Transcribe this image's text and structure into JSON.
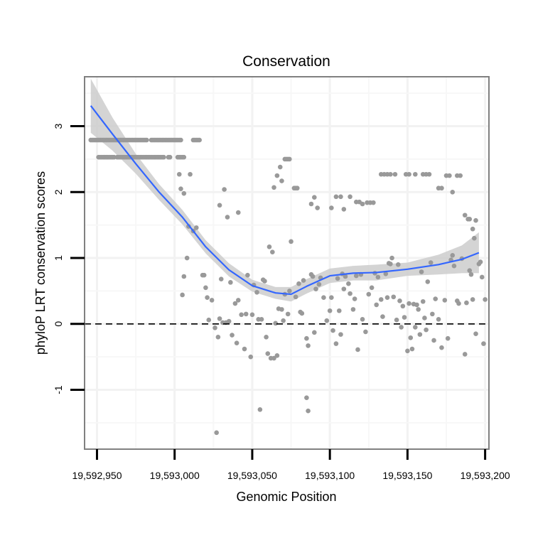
{
  "chart_data": {
    "type": "scatter",
    "title": "Conservation",
    "xlabel": "Genomic Position",
    "ylabel": "phyloP LRT conservation scores",
    "xlim": [
      19592942,
      19593202
    ],
    "ylim": [
      -1.9,
      3.75
    ],
    "x_ticks": [
      19592950,
      19593000,
      19593050,
      19593100,
      19593150,
      19593200
    ],
    "x_tick_labels": [
      "19,592,950",
      "19,593,000",
      "19,593,050",
      "19,593,100",
      "19,593,150",
      "19,593,200"
    ],
    "y_ticks": [
      -1,
      0,
      1,
      2,
      3
    ],
    "y_tick_labels": [
      "-1",
      "0",
      "1",
      "2",
      "3"
    ],
    "grid": true,
    "reference_line": {
      "y": 0,
      "style": "dashed"
    },
    "point_color": "#999999",
    "smooth_color": "#3366ff",
    "band_color": "#cccccc",
    "points": [
      [
        19592946,
        2.79
      ],
      [
        19592947,
        2.79
      ],
      [
        19592948,
        2.79
      ],
      [
        19592949,
        2.79
      ],
      [
        19592950,
        2.79
      ],
      [
        19592951,
        2.79
      ],
      [
        19592952,
        2.79
      ],
      [
        19592953,
        2.79
      ],
      [
        19592954,
        2.79
      ],
      [
        19592955,
        2.79
      ],
      [
        19592956,
        2.79
      ],
      [
        19592957,
        2.79
      ],
      [
        19592958,
        2.79
      ],
      [
        19592959,
        2.79
      ],
      [
        19592960,
        2.79
      ],
      [
        19592961,
        2.79
      ],
      [
        19592962,
        2.79
      ],
      [
        19592963,
        2.79
      ],
      [
        19592964,
        2.79
      ],
      [
        19592965,
        2.79
      ],
      [
        19592966,
        2.79
      ],
      [
        19592967,
        2.79
      ],
      [
        19592968,
        2.79
      ],
      [
        19592969,
        2.79
      ],
      [
        19592970,
        2.79
      ],
      [
        19592971,
        2.79
      ],
      [
        19592972,
        2.79
      ],
      [
        19592973,
        2.79
      ],
      [
        19592974,
        2.79
      ],
      [
        19592975,
        2.79
      ],
      [
        19592976,
        2.79
      ],
      [
        19592977,
        2.79
      ],
      [
        19592978,
        2.79
      ],
      [
        19592979,
        2.79
      ],
      [
        19592980,
        2.79
      ],
      [
        19592981,
        2.79
      ],
      [
        19592982,
        2.79
      ],
      [
        19592985,
        2.79
      ],
      [
        19592986,
        2.79
      ],
      [
        19592987,
        2.79
      ],
      [
        19592988,
        2.79
      ],
      [
        19592989,
        2.79
      ],
      [
        19592990,
        2.79
      ],
      [
        19592991,
        2.79
      ],
      [
        19592992,
        2.79
      ],
      [
        19592993,
        2.79
      ],
      [
        19592994,
        2.79
      ],
      [
        19592995,
        2.79
      ],
      [
        19592996,
        2.79
      ],
      [
        19592997,
        2.79
      ],
      [
        19592998,
        2.79
      ],
      [
        19592999,
        2.79
      ],
      [
        19593000,
        2.79
      ],
      [
        19593001,
        2.79
      ],
      [
        19593002,
        2.79
      ],
      [
        19593003,
        2.79
      ],
      [
        19593004,
        2.79
      ],
      [
        19593012,
        2.79
      ],
      [
        19593013,
        2.79
      ],
      [
        19593014,
        2.79
      ],
      [
        19593015,
        2.79
      ],
      [
        19593016,
        2.79
      ],
      [
        19592951,
        2.53
      ],
      [
        19592952,
        2.53
      ],
      [
        19592953,
        2.53
      ],
      [
        19592954,
        2.53
      ],
      [
        19592955,
        2.53
      ],
      [
        19592956,
        2.53
      ],
      [
        19592957,
        2.53
      ],
      [
        19592958,
        2.53
      ],
      [
        19592959,
        2.53
      ],
      [
        19592960,
        2.53
      ],
      [
        19592961,
        2.53
      ],
      [
        19592963,
        2.53
      ],
      [
        19592964,
        2.53
      ],
      [
        19592965,
        2.53
      ],
      [
        19592966,
        2.53
      ],
      [
        19592967,
        2.53
      ],
      [
        19592968,
        2.53
      ],
      [
        19592969,
        2.53
      ],
      [
        19592970,
        2.53
      ],
      [
        19592971,
        2.53
      ],
      [
        19592972,
        2.53
      ],
      [
        19592973,
        2.53
      ],
      [
        19592974,
        2.53
      ],
      [
        19592975,
        2.53
      ],
      [
        19592976,
        2.53
      ],
      [
        19592977,
        2.53
      ],
      [
        19592978,
        2.53
      ],
      [
        19592979,
        2.53
      ],
      [
        19592980,
        2.53
      ],
      [
        19592981,
        2.53
      ],
      [
        19592982,
        2.53
      ],
      [
        19592983,
        2.53
      ],
      [
        19592984,
        2.53
      ],
      [
        19592985,
        2.53
      ],
      [
        19592986,
        2.53
      ],
      [
        19592987,
        2.53
      ],
      [
        19592988,
        2.53
      ],
      [
        19592989,
        2.53
      ],
      [
        19592990,
        2.53
      ],
      [
        19592991,
        2.53
      ],
      [
        19592992,
        2.53
      ],
      [
        19592993,
        2.53
      ],
      [
        19592996,
        2.53
      ],
      [
        19592997,
        2.53
      ],
      [
        19593002,
        2.53
      ],
      [
        19593003,
        2.53
      ],
      [
        19593004,
        2.53
      ],
      [
        19593005,
        2.53
      ],
      [
        19593006,
        2.53
      ],
      [
        19593010,
        2.27
      ],
      [
        19593003,
        2.27
      ],
      [
        19593004,
        2.05
      ],
      [
        19593006,
        1.98
      ],
      [
        19593029,
        1.8
      ],
      [
        19593034,
        1.62
      ],
      [
        19593041,
        1.69
      ],
      [
        19593032,
        2.04
      ],
      [
        19593064,
        2.07
      ],
      [
        19593066,
        2.25
      ],
      [
        19593068,
        2.38
      ],
      [
        19593069,
        2.17
      ],
      [
        19593071,
        2.5
      ],
      [
        19593072,
        2.5
      ],
      [
        19593073,
        2.5
      ],
      [
        19593074,
        2.5
      ],
      [
        19593077,
        2.06
      ],
      [
        19593078,
        2.06
      ],
      [
        19593079,
        2.06
      ],
      [
        19593088,
        1.82
      ],
      [
        19593090,
        1.92
      ],
      [
        19593092,
        1.76
      ],
      [
        19593101,
        1.76
      ],
      [
        19593104,
        1.93
      ],
      [
        19593107,
        1.93
      ],
      [
        19593109,
        1.74
      ],
      [
        19593113,
        1.93
      ],
      [
        19593117,
        1.85
      ],
      [
        19593119,
        1.85
      ],
      [
        19593121,
        1.82
      ],
      [
        19593124,
        1.84
      ],
      [
        19593126,
        1.84
      ],
      [
        19593128,
        1.84
      ],
      [
        19593133,
        2.27
      ],
      [
        19593135,
        2.27
      ],
      [
        19593137,
        2.27
      ],
      [
        19593139,
        2.27
      ],
      [
        19593142,
        2.27
      ],
      [
        19593149,
        2.27
      ],
      [
        19593151,
        2.27
      ],
      [
        19593155,
        2.27
      ],
      [
        19593160,
        2.27
      ],
      [
        19593162,
        2.27
      ],
      [
        19593164,
        2.27
      ],
      [
        19593170,
        2.06
      ],
      [
        19593172,
        2.06
      ],
      [
        19593175,
        2.25
      ],
      [
        19593177,
        2.25
      ],
      [
        19593179,
        2.0
      ],
      [
        19593182,
        2.25
      ],
      [
        19593184,
        2.25
      ],
      [
        19593187,
        1.65
      ],
      [
        19593189,
        1.59
      ],
      [
        19593190,
        1.59
      ],
      [
        19593192,
        1.44
      ],
      [
        19593193,
        1.3
      ],
      [
        19593194,
        1.57
      ],
      [
        19593008,
        1.0
      ],
      [
        19593009,
        1.48
      ],
      [
        19593012,
        1.41
      ],
      [
        19593014,
        1.46
      ],
      [
        19593006,
        0.72
      ],
      [
        19593005,
        0.44
      ],
      [
        19593018,
        0.74
      ],
      [
        19593019,
        0.74
      ],
      [
        19593020,
        0.55
      ],
      [
        19593021,
        0.4
      ],
      [
        19593022,
        0.06
      ],
      [
        19593024,
        0.36
      ],
      [
        19593026,
        -0.06
      ],
      [
        19593028,
        -0.2
      ],
      [
        19593029,
        0.08
      ],
      [
        19593030,
        0.68
      ],
      [
        19593031,
        0.02
      ],
      [
        19593033,
        0.02
      ],
      [
        19593035,
        0.04
      ],
      [
        19593036,
        0.63
      ],
      [
        19593037,
        -0.17
      ],
      [
        19593039,
        0.31
      ],
      [
        19593040,
        -0.29
      ],
      [
        19593041,
        0.36
      ],
      [
        19593043,
        0.14
      ],
      [
        19593045,
        -0.38
      ],
      [
        19593046,
        0.15
      ],
      [
        19593047,
        0.74
      ],
      [
        19593049,
        -0.5
      ],
      [
        19593050,
        0.14
      ],
      [
        19593051,
        0.59
      ],
      [
        19593053,
        0.48
      ],
      [
        19593054,
        0.07
      ],
      [
        19593056,
        0.07
      ],
      [
        19593057,
        0.67
      ],
      [
        19593058,
        0.65
      ],
      [
        19593059,
        -0.2
      ],
      [
        19593060,
        -0.45
      ],
      [
        19593061,
        1.17
      ],
      [
        19593062,
        -0.52
      ],
      [
        19593063,
        1.09
      ],
      [
        19593064,
        -0.52
      ],
      [
        19593065,
        0.01
      ],
      [
        19593066,
        -0.48
      ],
      [
        19593067,
        0.23
      ],
      [
        19593069,
        0.22
      ],
      [
        19593070,
        0.05
      ],
      [
        19593071,
        0.45
      ],
      [
        19593073,
        0.15
      ],
      [
        19593074,
        0.5
      ],
      [
        19593075,
        1.25
      ],
      [
        19593078,
        0.41
      ],
      [
        19593080,
        0.61
      ],
      [
        19593081,
        0.18
      ],
      [
        19593082,
        0.16
      ],
      [
        19593083,
        0.66
      ],
      [
        19593085,
        -0.22
      ],
      [
        19593086,
        -0.33
      ],
      [
        19593088,
        0.75
      ],
      [
        19593089,
        0.72
      ],
      [
        19593090,
        -0.13
      ],
      [
        19593091,
        0.53
      ],
      [
        19593093,
        0.6
      ],
      [
        19593094,
        0.7
      ],
      [
        19593096,
        0.4
      ],
      [
        19593098,
        0.05
      ],
      [
        19593100,
        0.2
      ],
      [
        19593101,
        0.4
      ],
      [
        19593102,
        -0.1
      ],
      [
        19593104,
        -0.3
      ],
      [
        19593105,
        0.69
      ],
      [
        19593106,
        0.2
      ],
      [
        19593107,
        -0.16
      ],
      [
        19593108,
        0.76
      ],
      [
        19593109,
        0.53
      ],
      [
        19593110,
        0.72
      ],
      [
        19593112,
        0.61
      ],
      [
        19593113,
        0.46
      ],
      [
        19593115,
        0.22
      ],
      [
        19593116,
        0.38
      ],
      [
        19593117,
        0.73
      ],
      [
        19593118,
        -0.39
      ],
      [
        19593120,
        0.75
      ],
      [
        19593121,
        0.07
      ],
      [
        19593123,
        -0.12
      ],
      [
        19593125,
        0.45
      ],
      [
        19593127,
        0.55
      ],
      [
        19593129,
        0.77
      ],
      [
        19593130,
        0.29
      ],
      [
        19593131,
        0.71
      ],
      [
        19593133,
        0.37
      ],
      [
        19593134,
        0.11
      ],
      [
        19593136,
        0.76
      ],
      [
        19593137,
        0.4
      ],
      [
        19593138,
        0.92
      ],
      [
        19593139,
        0.91
      ],
      [
        19593140,
        1.0
      ],
      [
        19593141,
        0.41
      ],
      [
        19593143,
        0.06
      ],
      [
        19593144,
        0.9
      ],
      [
        19593145,
        0.35
      ],
      [
        19593146,
        -0.05
      ],
      [
        19593147,
        0.27
      ],
      [
        19593148,
        0.1
      ],
      [
        19593150,
        -0.41
      ],
      [
        19593151,
        0.31
      ],
      [
        19593152,
        -0.21
      ],
      [
        19593153,
        -0.38
      ],
      [
        19593154,
        0.3
      ],
      [
        19593155,
        -0.05
      ],
      [
        19593156,
        0.29
      ],
      [
        19593157,
        0.22
      ],
      [
        19593158,
        -0.16
      ],
      [
        19593159,
        0.79
      ],
      [
        19593160,
        0.34
      ],
      [
        19593161,
        0.09
      ],
      [
        19593162,
        -0.09
      ],
      [
        19593163,
        0.64
      ],
      [
        19593165,
        0.93
      ],
      [
        19593166,
        0.15
      ],
      [
        19593167,
        -0.25
      ],
      [
        19593168,
        0.38
      ],
      [
        19593170,
        0.07
      ],
      [
        19593172,
        -0.36
      ],
      [
        19593174,
        0.36
      ],
      [
        19593176,
        -0.22
      ],
      [
        19593178,
        0.97
      ],
      [
        19593179,
        1.04
      ],
      [
        19593180,
        0.88
      ],
      [
        19593182,
        0.35
      ],
      [
        19593183,
        0.31
      ],
      [
        19593185,
        0.99
      ],
      [
        19593187,
        -0.46
      ],
      [
        19593188,
        0.32
      ],
      [
        19593190,
        0.81
      ],
      [
        19593191,
        0.75
      ],
      [
        19593192,
        0.37
      ],
      [
        19593194,
        -0.15
      ],
      [
        19593196,
        0.91
      ],
      [
        19593197,
        0.94
      ],
      [
        19593198,
        0.71
      ],
      [
        19593199,
        -0.3
      ],
      [
        19593200,
        0.37
      ],
      [
        19593027,
        -1.65
      ],
      [
        19593055,
        -1.3
      ],
      [
        19593085,
        -1.12
      ],
      [
        19593086,
        -1.32
      ]
    ],
    "smooth_fit": {
      "x": [
        19592946,
        19592960,
        19592975,
        19592990,
        19593005,
        19593020,
        19593035,
        19593050,
        19593065,
        19593075,
        19593085,
        19593100,
        19593115,
        19593130,
        19593150,
        19593170,
        19593185,
        19593196
      ],
      "y": [
        3.31,
        2.88,
        2.43,
        2.0,
        1.62,
        1.17,
        0.82,
        0.58,
        0.47,
        0.45,
        0.57,
        0.73,
        0.77,
        0.78,
        0.83,
        0.9,
        0.98,
        1.08
      ]
    },
    "confidence_band": {
      "upper": [
        3.72,
        3.13,
        2.58,
        2.12,
        1.73,
        1.27,
        0.92,
        0.67,
        0.56,
        0.56,
        0.68,
        0.84,
        0.88,
        0.9,
        0.93,
        1.05,
        1.19,
        1.39
      ],
      "lower": [
        2.9,
        2.63,
        2.28,
        1.88,
        1.51,
        1.07,
        0.72,
        0.49,
        0.38,
        0.34,
        0.46,
        0.62,
        0.66,
        0.66,
        0.73,
        0.75,
        0.77,
        0.77
      ]
    }
  }
}
